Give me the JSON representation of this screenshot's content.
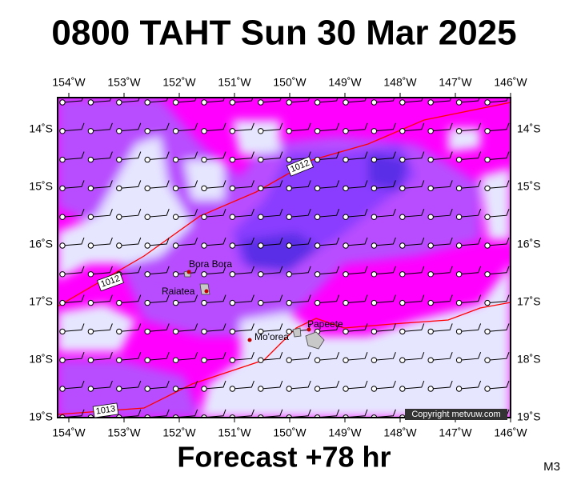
{
  "title": "0800 TAHT Sun 30 Mar 2025",
  "lon_labels": [
    "154˚W",
    "153˚W",
    "152˚W",
    "151˚W",
    "150˚W",
    "149˚W",
    "148˚W",
    "147˚W",
    "146˚W"
  ],
  "lat_labels": [
    "14˚S",
    "15˚S",
    "16˚S",
    "17˚S",
    "18˚S",
    "19˚S"
  ],
  "isobar_labels": [
    "1012",
    "1012",
    "1013"
  ],
  "places": [
    "Bora Bora",
    "Raiatea",
    "Mo'orea",
    "Papeete"
  ],
  "copyright": "Copyright metvuw.com",
  "footer": "Forecast +78 hr",
  "model": "M3"
}
